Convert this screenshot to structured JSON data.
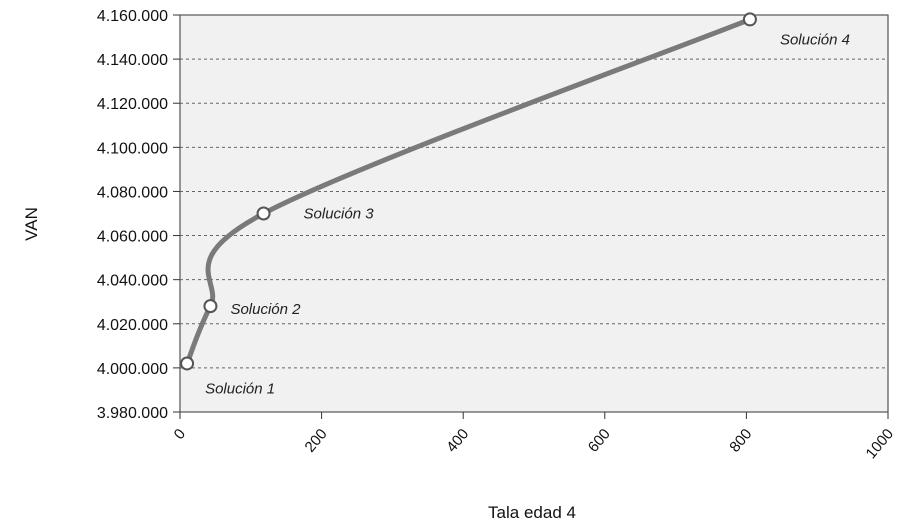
{
  "chart_data": {
    "type": "line",
    "xlabel": "Tala edad 4",
    "ylabel": "VAN",
    "xlim": [
      0,
      1000
    ],
    "ylim": [
      3980000,
      4160000
    ],
    "x_ticks": [
      0,
      200,
      400,
      600,
      800,
      1000
    ],
    "x_tick_labels": [
      "0",
      "200",
      "400",
      "600",
      "800",
      "1000"
    ],
    "y_ticks": [
      3980000,
      4000000,
      4020000,
      4040000,
      4060000,
      4080000,
      4100000,
      4120000,
      4140000,
      4160000
    ],
    "y_tick_labels": [
      "3.980.000",
      "4.000.000",
      "4.020.000",
      "4.040.000",
      "4.060.000",
      "4.080.000",
      "4.100.000",
      "4.120.000",
      "4.140.000",
      "4.160.000"
    ],
    "grid": "horizontal-dashed",
    "series": [
      {
        "points": [
          {
            "x": 10,
            "y": 4002000,
            "label": "Solución 1"
          },
          {
            "x": 43,
            "y": 4028000,
            "label": "Solución 2"
          },
          {
            "x": 118,
            "y": 4070000,
            "label": "Solución 3"
          },
          {
            "x": 805,
            "y": 4158000,
            "label": "Solución 4"
          }
        ]
      }
    ],
    "colors": {
      "line": "#7a7a7a",
      "marker_fill": "#ffffff",
      "marker_stroke": "#555555",
      "plot_bg": "#f1f1f1",
      "grid": "#666666"
    }
  }
}
